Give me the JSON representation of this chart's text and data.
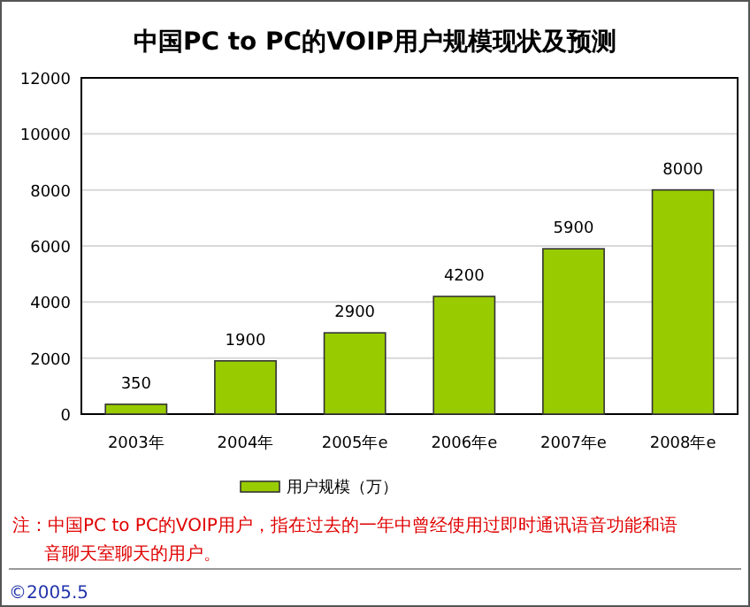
{
  "chart_data": {
    "type": "bar",
    "title": "中国PC to PC的VOIP用户规模现状及预测",
    "categories": [
      "2003年",
      "2004年",
      "2005年e",
      "2006年e",
      "2007年e",
      "2008年e"
    ],
    "series": [
      {
        "name": "用户规模（万）",
        "color": "#99cc00",
        "values": [
          350,
          1900,
          2900,
          4200,
          5900,
          8000
        ]
      }
    ],
    "ylim": [
      0,
      12000
    ],
    "yticks": [
      0,
      2000,
      4000,
      6000,
      8000,
      10000,
      12000
    ],
    "grid": "y",
    "legend": "bottom",
    "data_labels": true,
    "annotations": [
      "注：中国PC to PC的VOIP用户，指在过去的一年中曾经使用过即时通讯语音功能和语音聊天室聊天的用户。",
      "©2005.5"
    ]
  }
}
